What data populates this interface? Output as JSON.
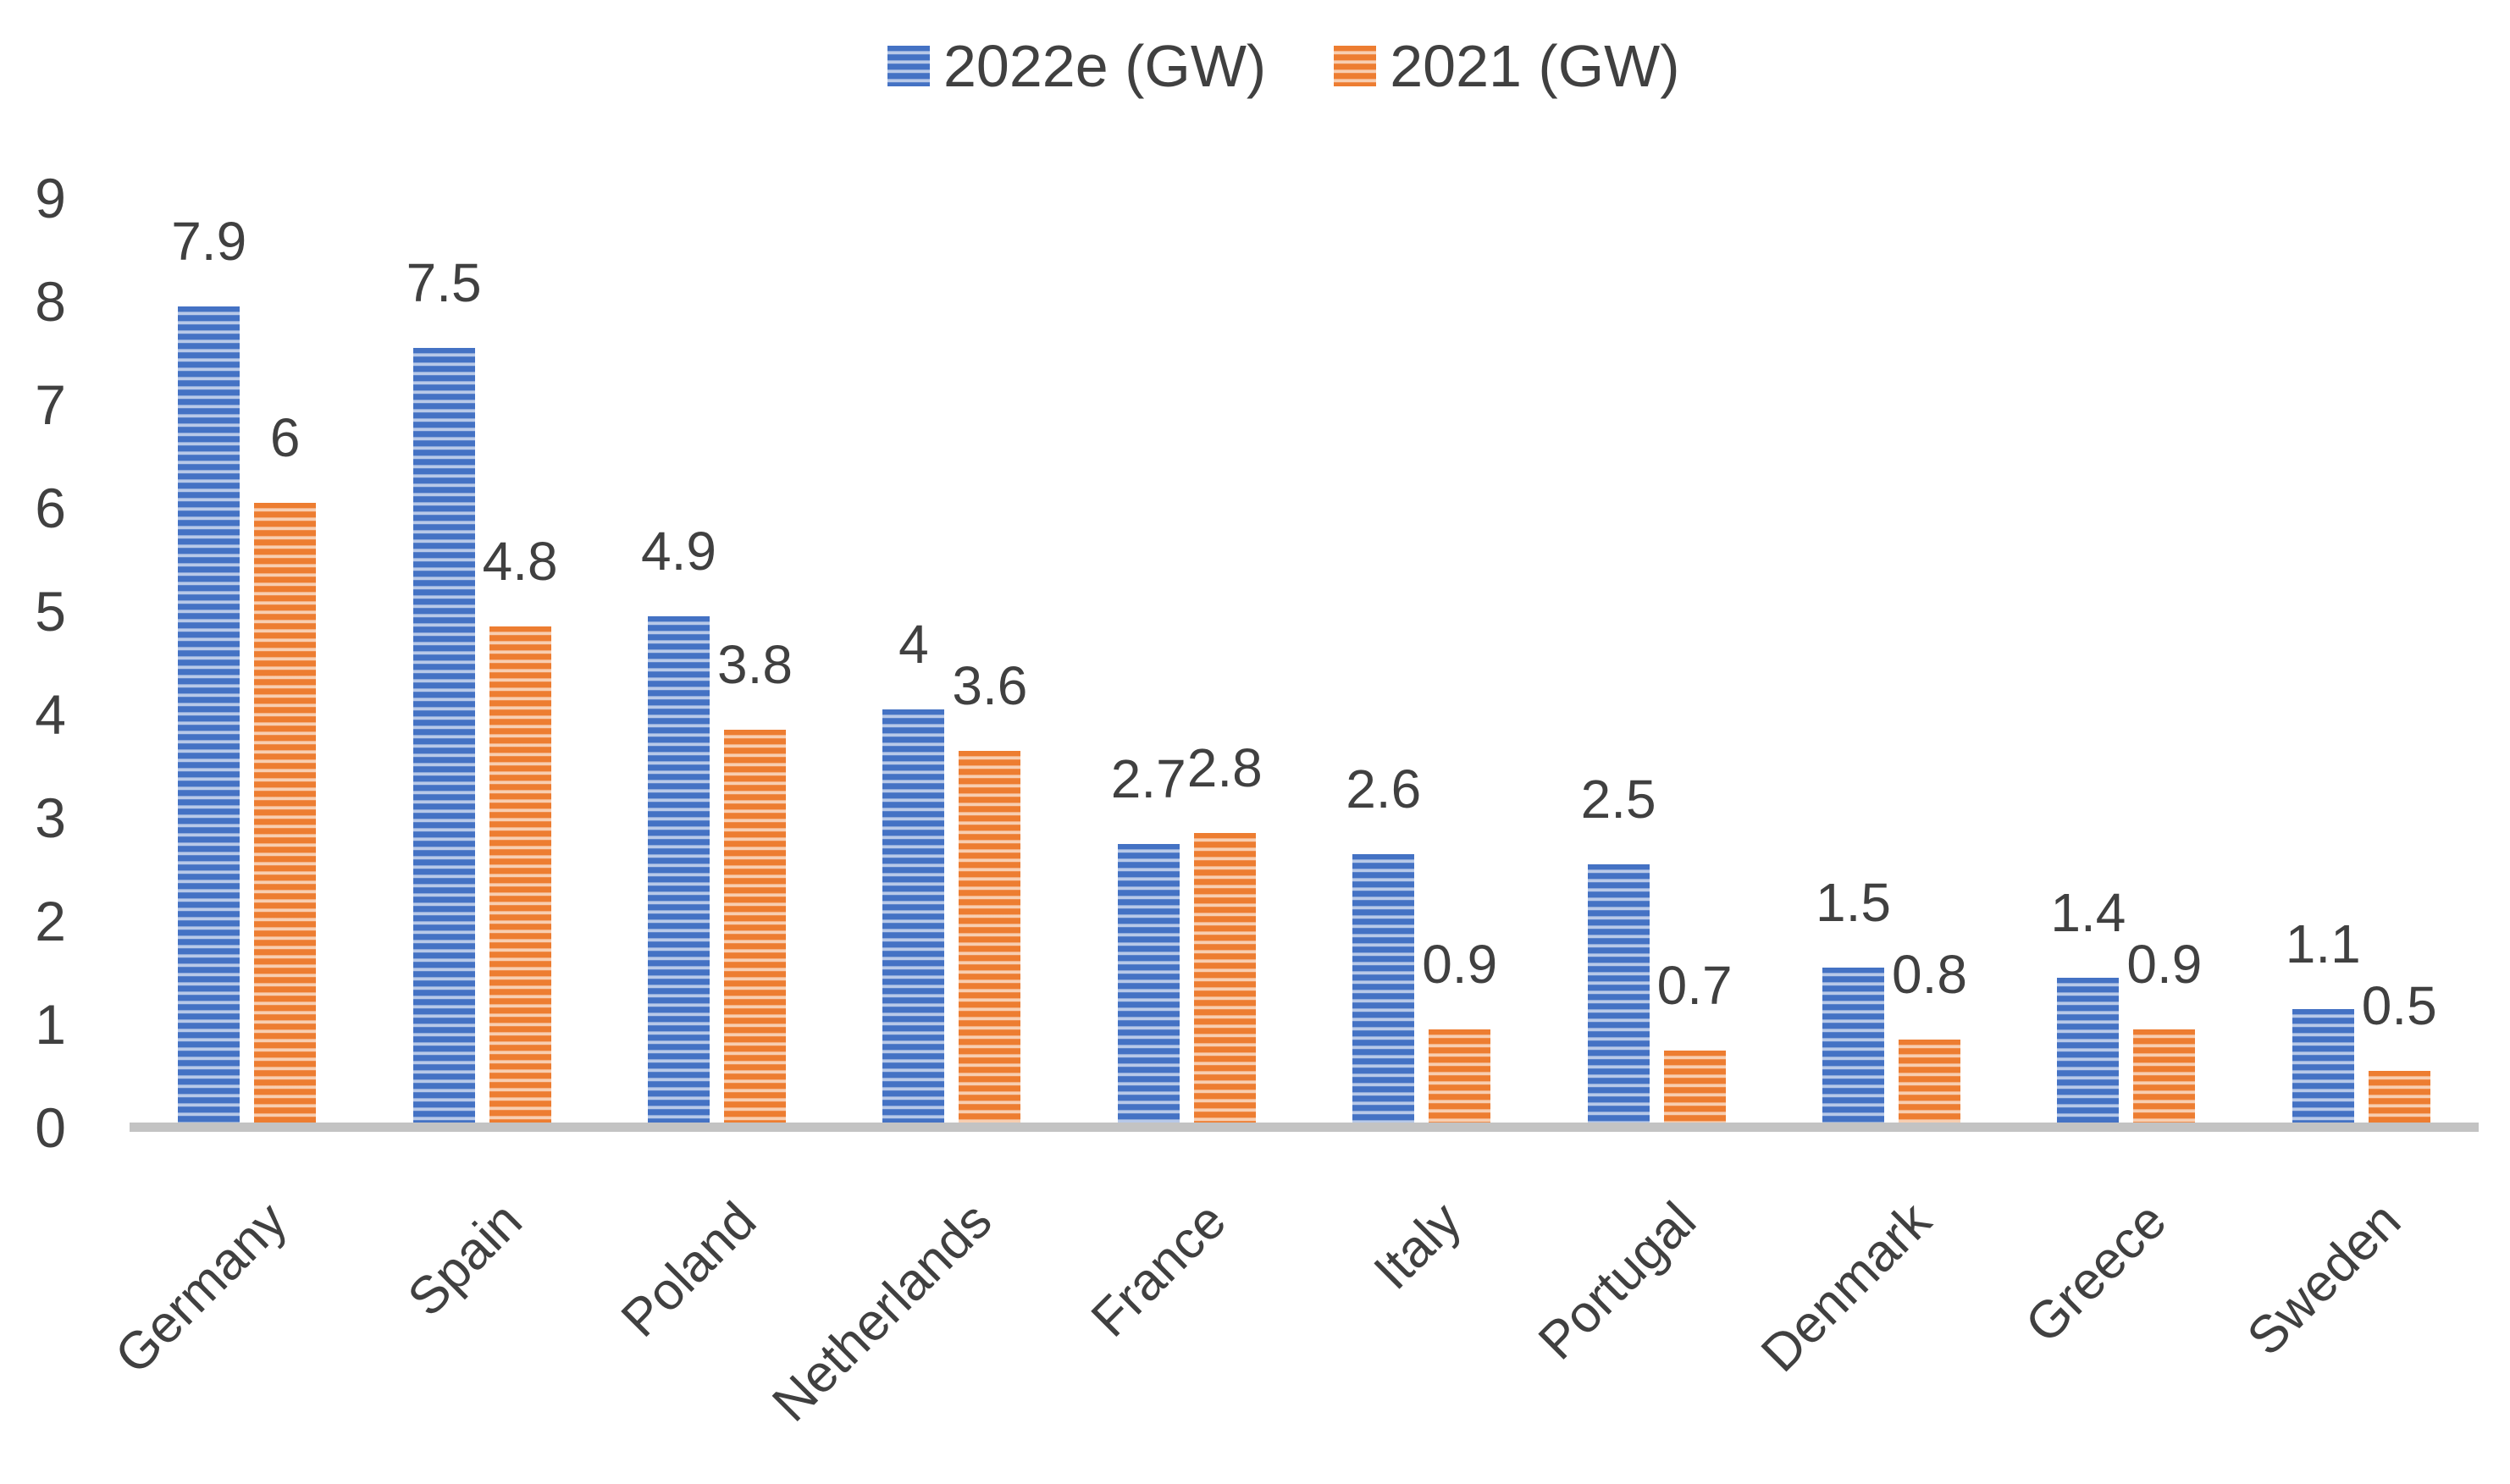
{
  "chart_data": {
    "type": "bar",
    "title": "",
    "xlabel": "",
    "ylabel": "",
    "categories": [
      "Germany",
      "Spain",
      "Poland",
      "Netherlands",
      "France",
      "Italy",
      "Portugal",
      "Denmark",
      "Greece",
      "Sweden"
    ],
    "series": [
      {
        "name": "2022e (GW)",
        "color": "#4472C4",
        "pattern": "light-horizontal-stripes",
        "values": [
          7.9,
          7.5,
          4.9,
          4,
          2.7,
          2.6,
          2.5,
          1.5,
          1.4,
          1.1
        ],
        "labels": [
          "7.9",
          "7.5",
          "4.9",
          "4",
          "2.7",
          "2.6",
          "2.5",
          "1.5",
          "1.4",
          "1.1"
        ]
      },
      {
        "name": "2021 (GW)",
        "color": "#ED7D31",
        "pattern": "light-horizontal-stripes",
        "values": [
          6,
          4.8,
          3.8,
          3.6,
          2.8,
          0.9,
          0.7,
          0.8,
          0.9,
          0.5
        ],
        "labels": [
          "6",
          "4.8",
          "3.8",
          "3.6",
          "2.8",
          "0.9",
          "0.7",
          "0.8",
          "0.9",
          "0.5"
        ]
      }
    ],
    "y_axis": {
      "min": 0,
      "max": 9,
      "tick_labels": [
        "0",
        "1",
        "2",
        "3",
        "4",
        "5",
        "6",
        "7",
        "8",
        "9"
      ]
    },
    "grid": false,
    "legend_position": "top-center",
    "bar_value_labels": "outside-end"
  },
  "legend": {
    "items": [
      {
        "label": "2022e (GW)",
        "color": "#4472C4"
      },
      {
        "label": "2021 (GW)",
        "color": "#ED7D31"
      }
    ]
  },
  "colors": {
    "series_2022e": "#4472C4",
    "series_2021": "#ED7D31",
    "axis_line": "#C3C3C3",
    "text": "#404040",
    "background": "#FFFFFF"
  }
}
